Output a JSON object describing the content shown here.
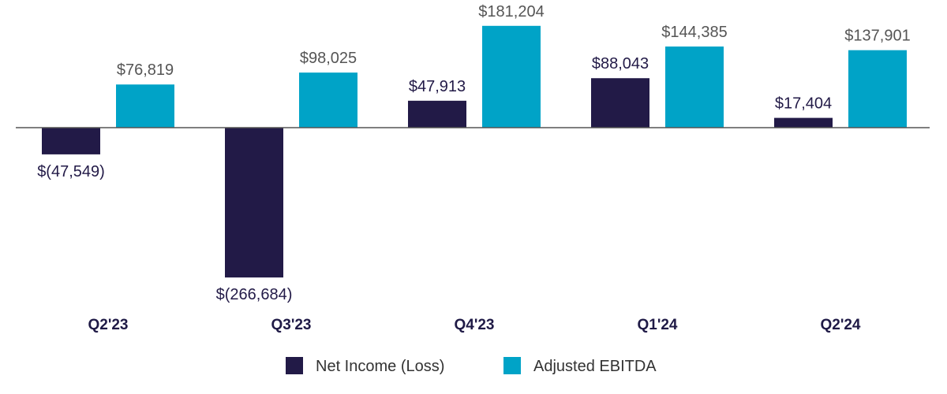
{
  "chart_data": {
    "type": "bar",
    "title": "",
    "xlabel": "",
    "ylabel": "",
    "categories": [
      "Q2'23",
      "Q3'23",
      "Q4'23",
      "Q1'24",
      "Q2'24"
    ],
    "series": [
      {
        "name": "Net Income (Loss)",
        "color": "#221a47",
        "label_color": "#221a47",
        "values": [
          -47549,
          -266684,
          47913,
          88043,
          17404
        ],
        "labels": [
          "$(47,549)",
          "$(266,684)",
          "$47,913",
          "$88,043",
          "$17,404"
        ]
      },
      {
        "name": "Adjusted EBITDA",
        "color": "#00a3c7",
        "label_color": "#555555",
        "values": [
          76819,
          98025,
          181204,
          144385,
          137901
        ],
        "labels": [
          "$76,819",
          "$98,025",
          "$181,204",
          "$144,385",
          "$137,901"
        ]
      }
    ],
    "ylim": [
      -266684,
      181204
    ],
    "grid": false,
    "legend_position": "bottom-center",
    "baseline_color": "#555555"
  }
}
